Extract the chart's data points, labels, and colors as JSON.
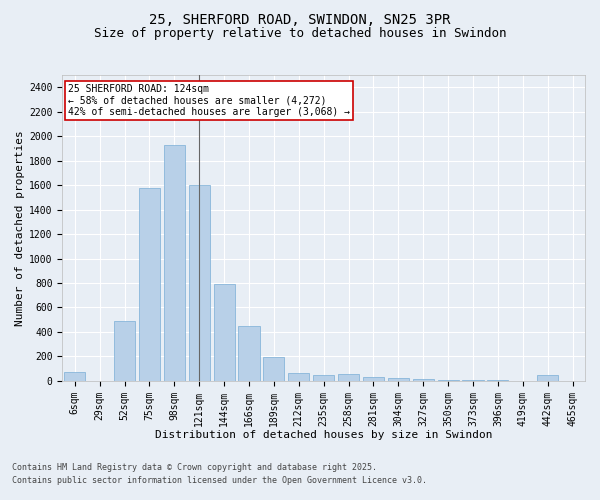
{
  "title1": "25, SHERFORD ROAD, SWINDON, SN25 3PR",
  "title2": "Size of property relative to detached houses in Swindon",
  "xlabel": "Distribution of detached houses by size in Swindon",
  "ylabel": "Number of detached properties",
  "footer1": "Contains HM Land Registry data © Crown copyright and database right 2025.",
  "footer2": "Contains public sector information licensed under the Open Government Licence v3.0.",
  "categories": [
    "6sqm",
    "29sqm",
    "52sqm",
    "75sqm",
    "98sqm",
    "121sqm",
    "144sqm",
    "166sqm",
    "189sqm",
    "212sqm",
    "235sqm",
    "258sqm",
    "281sqm",
    "304sqm",
    "327sqm",
    "350sqm",
    "373sqm",
    "396sqm",
    "419sqm",
    "442sqm",
    "465sqm"
  ],
  "values": [
    70,
    0,
    490,
    1580,
    1930,
    1600,
    790,
    450,
    195,
    65,
    50,
    55,
    30,
    20,
    15,
    10,
    5,
    5,
    0,
    50,
    0
  ],
  "bar_color": "#b8d0e8",
  "bar_edge_color": "#7aaed6",
  "bg_color": "#e8eef5",
  "grid_color": "#ffffff",
  "annotation_line1": "25 SHERFORD ROAD: 124sqm",
  "annotation_line2": "← 58% of detached houses are smaller (4,272)",
  "annotation_line3": "42% of semi-detached houses are larger (3,068) →",
  "annotation_box_color": "#ffffff",
  "annotation_box_edge": "#cc0000",
  "vline_x": 5.0,
  "ylim_max": 2500,
  "yticks": [
    0,
    200,
    400,
    600,
    800,
    1000,
    1200,
    1400,
    1600,
    1800,
    2000,
    2200,
    2400
  ],
  "title_fontsize": 10,
  "subtitle_fontsize": 9,
  "axis_label_fontsize": 8,
  "tick_fontsize": 7,
  "annotation_fontsize": 7,
  "footer_fontsize": 6
}
